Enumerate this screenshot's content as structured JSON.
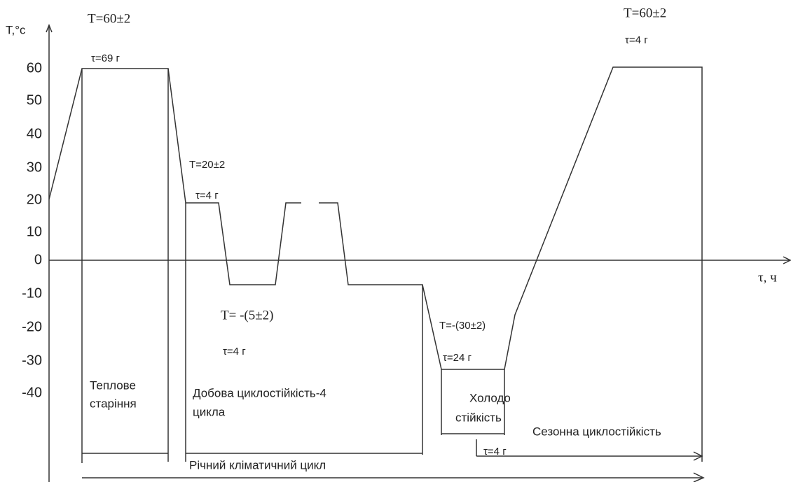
{
  "axis": {
    "y_label": "T,°c",
    "x_label": "τ, ч",
    "yticks": [
      "60",
      "50",
      "40",
      "30",
      "20",
      "10",
      "0",
      "-10",
      "-20",
      "-30",
      "-40"
    ]
  },
  "annotations": {
    "t1": "T=60±2",
    "tau1": "τ=69 г",
    "t2": "T=20±2",
    "tau2": "τ=4 г",
    "t3": "T= -(5±2)",
    "tau3": "τ=4 г",
    "t4": "T=-(30±2)",
    "tau4": "τ=24 г",
    "t5": "T=60±2",
    "tau5": "τ=4 г",
    "tau6": "τ=4 г"
  },
  "stages": {
    "heat_1": "Теплове",
    "heat_2": "старіння",
    "daily_1": "Добова циклостійкість-4",
    "daily_2": "цикла",
    "cold_1": "Холодо",
    "cold_2": "стійкість",
    "seasonal": "Сезонна циклостійкість",
    "annual": "Річний кліматичний цикл"
  }
}
